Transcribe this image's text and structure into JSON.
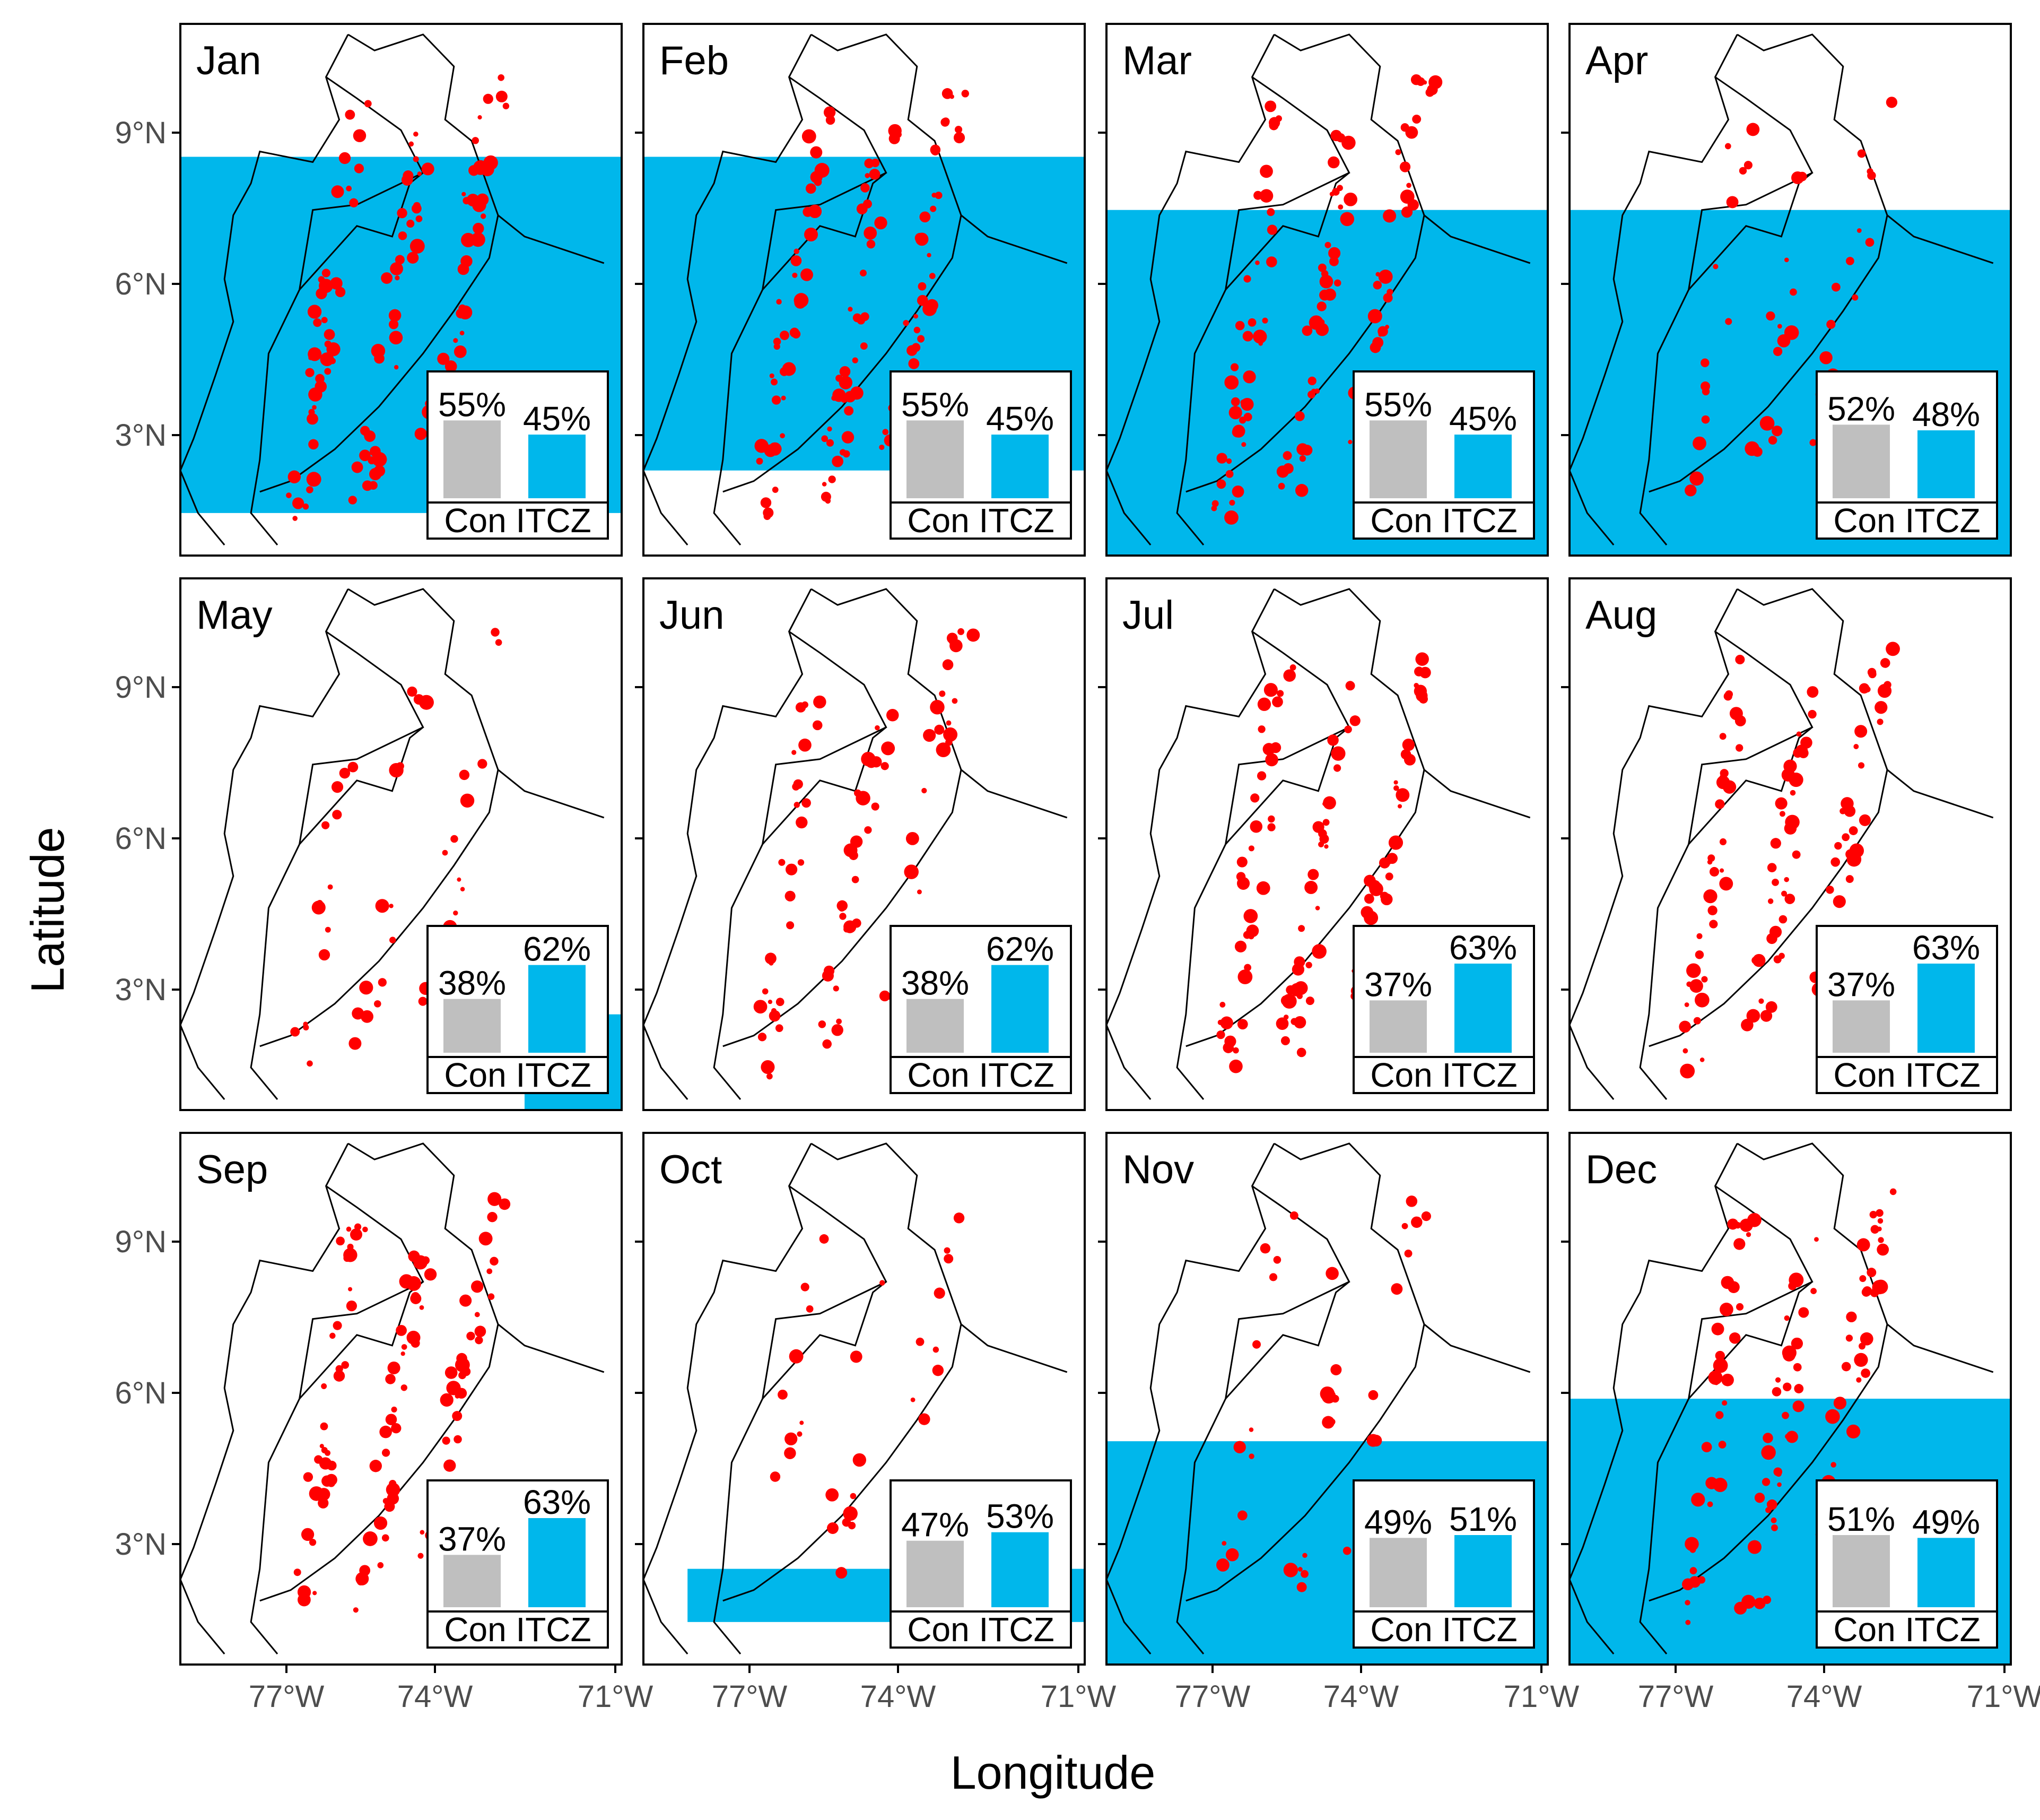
{
  "figure": {
    "x_axis_label": "Longitude",
    "y_axis_label": "Latitude",
    "lat_tick_labels": [
      "9°N",
      "6°N",
      "3°N"
    ],
    "lon_tick_labels": [
      "77°W",
      "74°W",
      "71°W"
    ],
    "inset_axis_label": "Con ITCZ"
  },
  "colors": {
    "itcz_zone": "#00b7eb",
    "occurrence": "#ff0000",
    "non_itcz_bar": "#bfbfbf",
    "border": "#000000"
  },
  "chart_data": {
    "type": "map-facets",
    "lon_range": [
      -79,
      -70
    ],
    "lat_range": [
      0.5,
      11
    ],
    "panels": [
      {
        "month": "Jan",
        "no_itcz_pct": "55%",
        "itcz_pct": "45%",
        "no": 55,
        "yes": 45
      },
      {
        "month": "Feb",
        "no_itcz_pct": "55%",
        "itcz_pct": "45%",
        "no": 55,
        "yes": 45
      },
      {
        "month": "Mar",
        "no_itcz_pct": "55%",
        "itcz_pct": "45%",
        "no": 55,
        "yes": 45
      },
      {
        "month": "Apr",
        "no_itcz_pct": "52%",
        "itcz_pct": "48%",
        "no": 52,
        "yes": 48
      },
      {
        "month": "May",
        "no_itcz_pct": "38%",
        "itcz_pct": "62%",
        "no": 38,
        "yes": 62
      },
      {
        "month": "Jun",
        "no_itcz_pct": "38%",
        "itcz_pct": "62%",
        "no": 38,
        "yes": 62
      },
      {
        "month": "Jul",
        "no_itcz_pct": "37%",
        "itcz_pct": "63%",
        "no": 37,
        "yes": 63
      },
      {
        "month": "Aug",
        "no_itcz_pct": "37%",
        "itcz_pct": "63%",
        "no": 37,
        "yes": 63
      },
      {
        "month": "Sep",
        "no_itcz_pct": "37%",
        "itcz_pct": "63%",
        "no": 37,
        "yes": 63
      },
      {
        "month": "Oct",
        "no_itcz_pct": "47%",
        "itcz_pct": "53%",
        "no": 47,
        "yes": 53
      },
      {
        "month": "Nov",
        "no_itcz_pct": "49%",
        "itcz_pct": "51%",
        "no": 49,
        "yes": 51
      },
      {
        "month": "Dec",
        "no_itcz_pct": "51%",
        "itcz_pct": "49%",
        "no": 51,
        "yes": 49
      }
    ]
  }
}
